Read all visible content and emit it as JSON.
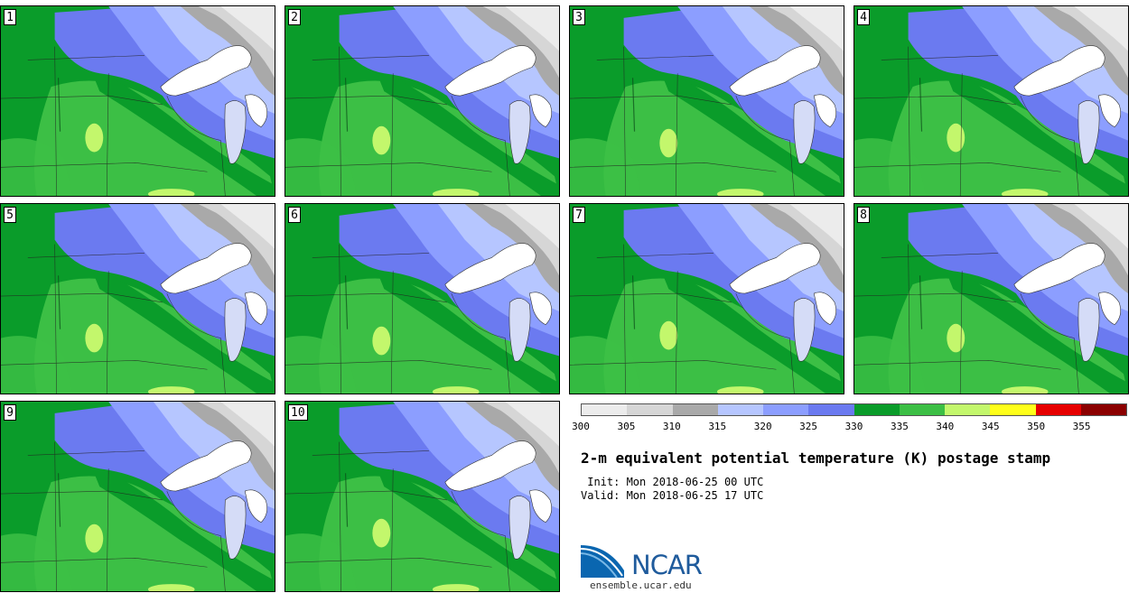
{
  "panels": [
    {
      "label": "1"
    },
    {
      "label": "2"
    },
    {
      "label": "3"
    },
    {
      "label": "4"
    },
    {
      "label": "5"
    },
    {
      "label": "6"
    },
    {
      "label": "7"
    },
    {
      "label": "8"
    },
    {
      "label": "9"
    },
    {
      "label": "10"
    }
  ],
  "colorbar": {
    "colors": [
      "#ececec",
      "#d6d6d6",
      "#a9a9a9",
      "#b6c6ff",
      "#8c9eff",
      "#6b7af0",
      "#0a9c2a",
      "#3cbf45",
      "#c3f76c",
      "#ffff1a",
      "#e60000",
      "#8b0000"
    ],
    "ticks": [
      "300",
      "305",
      "310",
      "315",
      "320",
      "325",
      "330",
      "335",
      "340",
      "345",
      "350",
      "355"
    ]
  },
  "title": "2-m equivalent potential temperature (K) postage stamp",
  "init": " Init: Mon 2018-06-25 00 UTC",
  "valid": "Valid: Mon 2018-06-25 17 UTC",
  "logo": {
    "text": "NCAR"
  },
  "website": "ensemble.ucar.edu"
}
